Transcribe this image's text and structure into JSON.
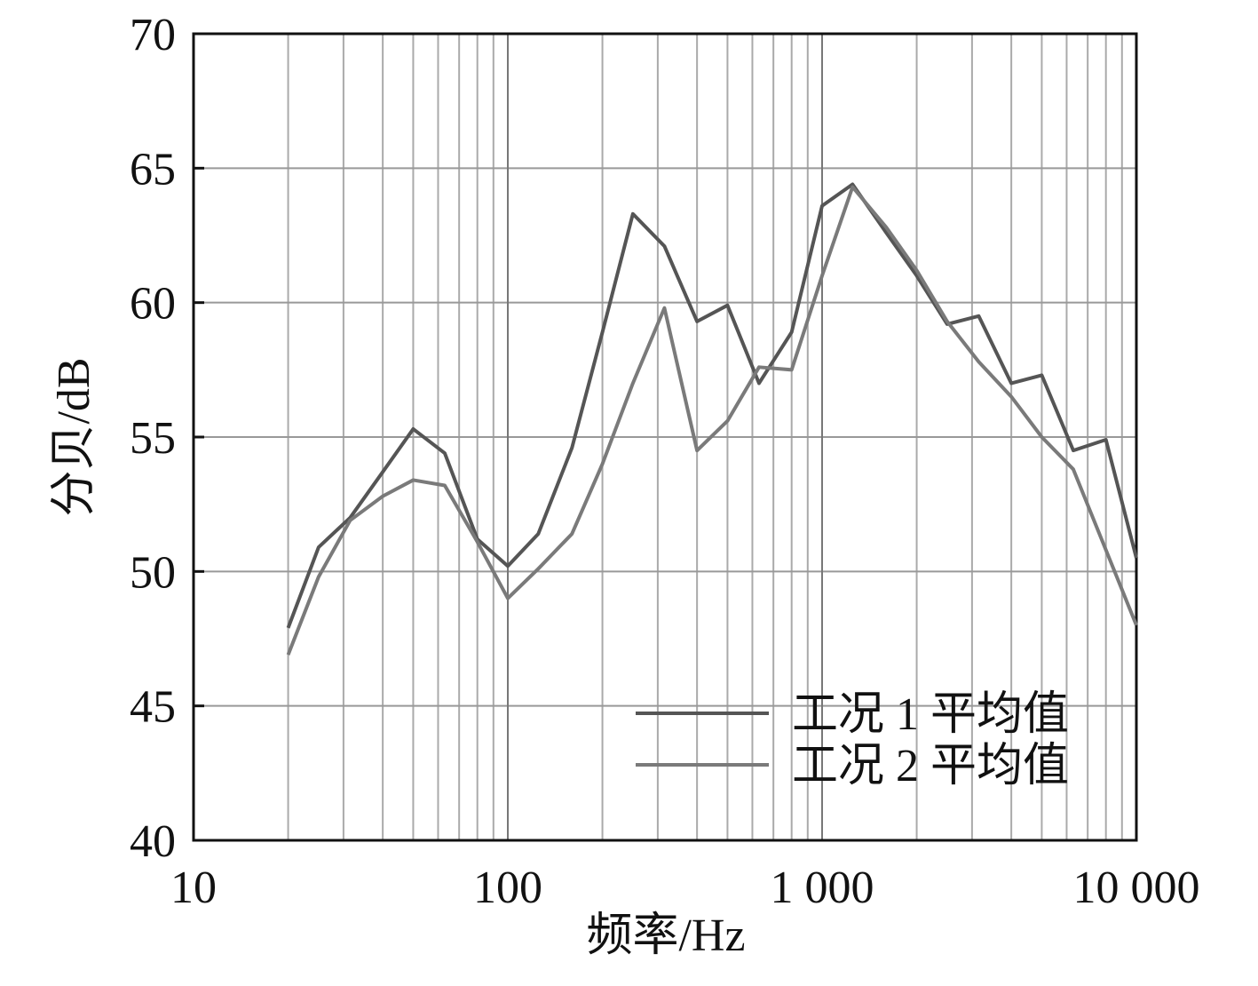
{
  "chart_data": {
    "type": "line",
    "x_label": "频率/Hz",
    "y_label": "分贝/dB",
    "x": [
      20,
      25,
      31.5,
      40,
      50,
      63,
      80,
      100,
      125,
      160,
      200,
      250,
      315,
      400,
      500,
      630,
      800,
      1000,
      1250,
      1600,
      2000,
      2500,
      3150,
      4000,
      5000,
      6300,
      8000,
      10000
    ],
    "series": [
      {
        "name": "工况 1 平均值",
        "color": "#555555",
        "values": [
          47.9,
          50.9,
          52.0,
          53.7,
          55.3,
          54.4,
          51.2,
          50.2,
          51.4,
          54.6,
          58.9,
          63.3,
          62.1,
          59.3,
          59.9,
          57.0,
          58.9,
          63.6,
          64.4,
          62.6,
          61.0,
          59.2,
          59.5,
          57.0,
          57.3,
          54.5,
          54.9,
          50.5
        ]
      },
      {
        "name": "工况 2 平均值",
        "color": "#7a7a7a",
        "values": [
          46.9,
          49.8,
          51.9,
          52.8,
          53.4,
          53.2,
          51.1,
          49.0,
          50.1,
          51.4,
          54.0,
          57.0,
          59.8,
          54.5,
          55.6,
          57.6,
          57.5,
          61.0,
          64.3,
          62.8,
          61.2,
          59.3,
          57.8,
          56.5,
          55.0,
          53.8,
          50.8,
          48.0
        ]
      }
    ],
    "xlog": true,
    "xlim": [
      10,
      10000
    ],
    "xticks": [
      10,
      100,
      {
        "value": 1000,
        "label": "1 000"
      },
      {
        "value": 10000,
        "label": "10 000"
      }
    ],
    "ylim": [
      40,
      70
    ],
    "yticks": [
      40,
      45,
      50,
      55,
      60,
      65,
      70
    ],
    "grid": true,
    "legend": "lower-right"
  }
}
